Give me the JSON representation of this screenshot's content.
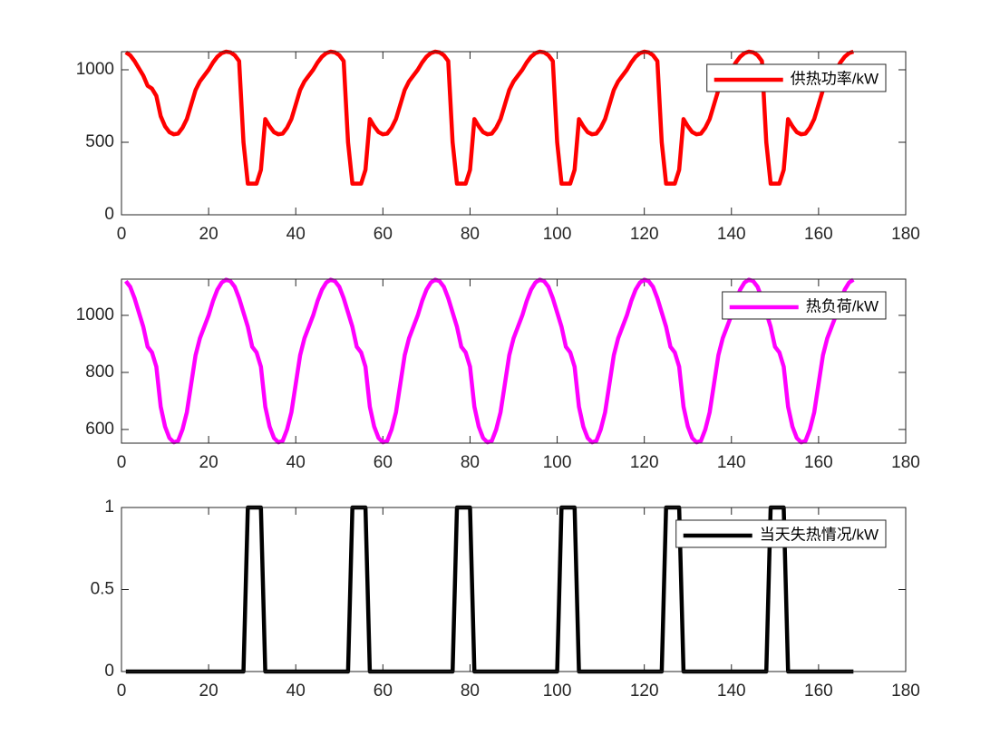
{
  "chart_data": [
    {
      "type": "line",
      "x": [
        1,
        2,
        3,
        4,
        5,
        6,
        7,
        8,
        9,
        10,
        11,
        12,
        13,
        14,
        15,
        16,
        17,
        18,
        19,
        20,
        21,
        22,
        23,
        24,
        25,
        26,
        27,
        28,
        29,
        30,
        31,
        32,
        33,
        34,
        35,
        36,
        37,
        38,
        39,
        40,
        41,
        42,
        43,
        44,
        45,
        46,
        47,
        48,
        49,
        50,
        51,
        52,
        53,
        54,
        55,
        56,
        57,
        58,
        59,
        60,
        61,
        62,
        63,
        64,
        65,
        66,
        67,
        68,
        69,
        70,
        71,
        72,
        73,
        74,
        75,
        76,
        77,
        78,
        79,
        80,
        81,
        82,
        83,
        84,
        85,
        86,
        87,
        88,
        89,
        90,
        91,
        92,
        93,
        94,
        95,
        96,
        97,
        98,
        99,
        100,
        101,
        102,
        103,
        104,
        105,
        106,
        107,
        108,
        109,
        110,
        111,
        112,
        113,
        114,
        115,
        116,
        117,
        118,
        119,
        120,
        121,
        122,
        123,
        124,
        125,
        126,
        127,
        128,
        129,
        130,
        131,
        132,
        133,
        134,
        135,
        136,
        137,
        138,
        139,
        140,
        141,
        142,
        143,
        144,
        145,
        146,
        147,
        148,
        149,
        150,
        151,
        152,
        153,
        154,
        155,
        156,
        157,
        158,
        159,
        160,
        161,
        162,
        163,
        164,
        165,
        166,
        167,
        168
      ],
      "series": [
        {
          "name": "供热功率/kW",
          "color": "#ff0000",
          "values": [
            1120,
            1100,
            1060,
            1010,
            960,
            890,
            870,
            820,
            680,
            610,
            570,
            555,
            560,
            600,
            660,
            760,
            860,
            920,
            960,
            1000,
            1050,
            1090,
            1115,
            1125,
            1120,
            1100,
            1060,
            500,
            215,
            215,
            215,
            310,
            660,
            610,
            570,
            555,
            560,
            600,
            660,
            760,
            860,
            920,
            960,
            1000,
            1050,
            1090,
            1115,
            1125,
            1120,
            1100,
            1060,
            500,
            215,
            215,
            215,
            310,
            660,
            610,
            570,
            555,
            560,
            600,
            660,
            760,
            860,
            920,
            960,
            1000,
            1050,
            1090,
            1115,
            1125,
            1120,
            1100,
            1060,
            500,
            215,
            215,
            215,
            310,
            660,
            610,
            570,
            555,
            560,
            600,
            660,
            760,
            860,
            920,
            960,
            1000,
            1050,
            1090,
            1115,
            1125,
            1120,
            1100,
            1060,
            500,
            215,
            215,
            215,
            310,
            660,
            610,
            570,
            555,
            560,
            600,
            660,
            760,
            860,
            920,
            960,
            1000,
            1050,
            1090,
            1115,
            1125,
            1120,
            1100,
            1060,
            500,
            215,
            215,
            215,
            310,
            660,
            610,
            570,
            555,
            560,
            600,
            660,
            760,
            860,
            920,
            960,
            1000,
            1050,
            1090,
            1115,
            1125,
            1120,
            1100,
            1060,
            500,
            215,
            215,
            215,
            310,
            660,
            610,
            570,
            555,
            560,
            600,
            660,
            760,
            860,
            920,
            960,
            1000,
            1050,
            1090,
            1115,
            1125
          ]
        }
      ],
      "xlim": [
        0,
        180
      ],
      "xticks": [
        0,
        20,
        40,
        60,
        80,
        100,
        120,
        140,
        160,
        180
      ],
      "ylim": [
        0,
        1125
      ],
      "yticks": [
        0,
        500,
        1000
      ]
    },
    {
      "type": "line",
      "x": [
        1,
        2,
        3,
        4,
        5,
        6,
        7,
        8,
        9,
        10,
        11,
        12,
        13,
        14,
        15,
        16,
        17,
        18,
        19,
        20,
        21,
        22,
        23,
        24,
        25,
        26,
        27,
        28,
        29,
        30,
        31,
        32,
        33,
        34,
        35,
        36,
        37,
        38,
        39,
        40,
        41,
        42,
        43,
        44,
        45,
        46,
        47,
        48,
        49,
        50,
        51,
        52,
        53,
        54,
        55,
        56,
        57,
        58,
        59,
        60,
        61,
        62,
        63,
        64,
        65,
        66,
        67,
        68,
        69,
        70,
        71,
        72,
        73,
        74,
        75,
        76,
        77,
        78,
        79,
        80,
        81,
        82,
        83,
        84,
        85,
        86,
        87,
        88,
        89,
        90,
        91,
        92,
        93,
        94,
        95,
        96,
        97,
        98,
        99,
        100,
        101,
        102,
        103,
        104,
        105,
        106,
        107,
        108,
        109,
        110,
        111,
        112,
        113,
        114,
        115,
        116,
        117,
        118,
        119,
        120,
        121,
        122,
        123,
        124,
        125,
        126,
        127,
        128,
        129,
        130,
        131,
        132,
        133,
        134,
        135,
        136,
        137,
        138,
        139,
        140,
        141,
        142,
        143,
        144,
        145,
        146,
        147,
        148,
        149,
        150,
        151,
        152,
        153,
        154,
        155,
        156,
        157,
        158,
        159,
        160,
        161,
        162,
        163,
        164,
        165,
        166,
        167,
        168
      ],
      "series": [
        {
          "name": "热负荷/kW",
          "color": "#ff00ff",
          "values": [
            1120,
            1100,
            1060,
            1010,
            960,
            890,
            870,
            820,
            680,
            610,
            570,
            555,
            560,
            600,
            660,
            760,
            860,
            920,
            960,
            1000,
            1050,
            1090,
            1115,
            1125,
            1120,
            1100,
            1060,
            1010,
            960,
            890,
            870,
            820,
            680,
            610,
            570,
            555,
            560,
            600,
            660,
            760,
            860,
            920,
            960,
            1000,
            1050,
            1090,
            1115,
            1125,
            1120,
            1100,
            1060,
            1010,
            960,
            890,
            870,
            820,
            680,
            610,
            570,
            555,
            560,
            600,
            660,
            760,
            860,
            920,
            960,
            1000,
            1050,
            1090,
            1115,
            1125,
            1120,
            1100,
            1060,
            1010,
            960,
            890,
            870,
            820,
            680,
            610,
            570,
            555,
            560,
            600,
            660,
            760,
            860,
            920,
            960,
            1000,
            1050,
            1090,
            1115,
            1125,
            1120,
            1100,
            1060,
            1010,
            960,
            890,
            870,
            820,
            680,
            610,
            570,
            555,
            560,
            600,
            660,
            760,
            860,
            920,
            960,
            1000,
            1050,
            1090,
            1115,
            1125,
            1120,
            1100,
            1060,
            1010,
            960,
            890,
            870,
            820,
            680,
            610,
            570,
            555,
            560,
            600,
            660,
            760,
            860,
            920,
            960,
            1000,
            1050,
            1090,
            1115,
            1125,
            1120,
            1100,
            1060,
            1010,
            960,
            890,
            870,
            820,
            680,
            610,
            570,
            555,
            560,
            600,
            660,
            760,
            860,
            920,
            960,
            1000,
            1050,
            1090,
            1115,
            1125
          ]
        }
      ],
      "xlim": [
        0,
        180
      ],
      "xticks": [
        0,
        20,
        40,
        60,
        80,
        100,
        120,
        140,
        160,
        180
      ],
      "ylim": [
        552,
        1127
      ],
      "yticks": [
        600,
        800,
        1000
      ]
    },
    {
      "type": "line",
      "x": [
        1,
        2,
        3,
        4,
        5,
        6,
        7,
        8,
        9,
        10,
        11,
        12,
        13,
        14,
        15,
        16,
        17,
        18,
        19,
        20,
        21,
        22,
        23,
        24,
        25,
        26,
        27,
        28,
        29,
        30,
        31,
        32,
        33,
        34,
        35,
        36,
        37,
        38,
        39,
        40,
        41,
        42,
        43,
        44,
        45,
        46,
        47,
        48,
        49,
        50,
        51,
        52,
        53,
        54,
        55,
        56,
        57,
        58,
        59,
        60,
        61,
        62,
        63,
        64,
        65,
        66,
        67,
        68,
        69,
        70,
        71,
        72,
        73,
        74,
        75,
        76,
        77,
        78,
        79,
        80,
        81,
        82,
        83,
        84,
        85,
        86,
        87,
        88,
        89,
        90,
        91,
        92,
        93,
        94,
        95,
        96,
        97,
        98,
        99,
        100,
        101,
        102,
        103,
        104,
        105,
        106,
        107,
        108,
        109,
        110,
        111,
        112,
        113,
        114,
        115,
        116,
        117,
        118,
        119,
        120,
        121,
        122,
        123,
        124,
        125,
        126,
        127,
        128,
        129,
        130,
        131,
        132,
        133,
        134,
        135,
        136,
        137,
        138,
        139,
        140,
        141,
        142,
        143,
        144,
        145,
        146,
        147,
        148,
        149,
        150,
        151,
        152,
        153,
        154,
        155,
        156,
        157,
        158,
        159,
        160,
        161,
        162,
        163,
        164,
        165,
        166,
        167,
        168
      ],
      "series": [
        {
          "name": "当天失热情况/kW",
          "color": "#000000",
          "values": [
            0,
            0,
            0,
            0,
            0,
            0,
            0,
            0,
            0,
            0,
            0,
            0,
            0,
            0,
            0,
            0,
            0,
            0,
            0,
            0,
            0,
            0,
            0,
            0,
            0,
            0,
            0,
            0,
            1,
            1,
            1,
            1,
            0,
            0,
            0,
            0,
            0,
            0,
            0,
            0,
            0,
            0,
            0,
            0,
            0,
            0,
            0,
            0,
            0,
            0,
            0,
            0,
            1,
            1,
            1,
            1,
            0,
            0,
            0,
            0,
            0,
            0,
            0,
            0,
            0,
            0,
            0,
            0,
            0,
            0,
            0,
            0,
            0,
            0,
            0,
            0,
            1,
            1,
            1,
            1,
            0,
            0,
            0,
            0,
            0,
            0,
            0,
            0,
            0,
            0,
            0,
            0,
            0,
            0,
            0,
            0,
            0,
            0,
            0,
            0,
            1,
            1,
            1,
            1,
            0,
            0,
            0,
            0,
            0,
            0,
            0,
            0,
            0,
            0,
            0,
            0,
            0,
            0,
            0,
            0,
            0,
            0,
            0,
            0,
            1,
            1,
            1,
            1,
            0,
            0,
            0,
            0,
            0,
            0,
            0,
            0,
            0,
            0,
            0,
            0,
            0,
            0,
            0,
            0,
            0,
            0,
            0,
            0,
            1,
            1,
            1,
            1,
            0,
            0,
            0,
            0,
            0,
            0,
            0,
            0,
            0,
            0,
            0,
            0,
            0,
            0,
            0,
            0
          ]
        }
      ],
      "xlim": [
        0,
        180
      ],
      "xticks": [
        0,
        20,
        40,
        60,
        80,
        100,
        120,
        140,
        160,
        180
      ],
      "ylim": [
        0,
        1
      ],
      "yticks": [
        0,
        0.5,
        1
      ]
    }
  ]
}
